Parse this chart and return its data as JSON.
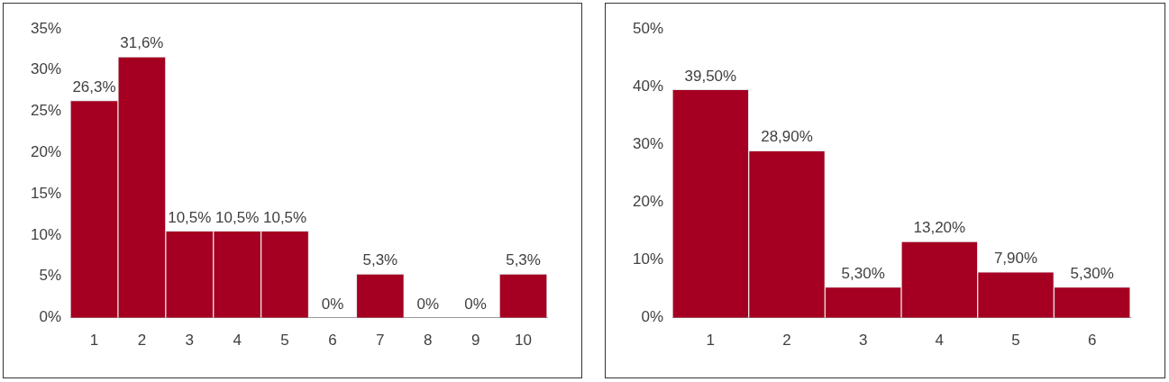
{
  "chart_data": [
    {
      "type": "bar",
      "categories": [
        "1",
        "2",
        "3",
        "4",
        "5",
        "6",
        "7",
        "8",
        "9",
        "10"
      ],
      "values": [
        26.3,
        31.6,
        10.5,
        10.5,
        10.5,
        0,
        5.3,
        0,
        0,
        5.3
      ],
      "color": "#a50021",
      "value_labels": [
        "26,3%",
        "31,6%",
        "10,5%",
        "10,5%",
        "10,5%",
        "0%",
        "5,3%",
        "0%",
        "0%",
        "5,3%"
      ],
      "ylim": [
        0,
        35
      ],
      "yticks": [
        {
          "value": 0,
          "label": "0%"
        },
        {
          "value": 5,
          "label": "5%"
        },
        {
          "value": 10,
          "label": "10%"
        },
        {
          "value": 15,
          "label": "15%"
        },
        {
          "value": 20,
          "label": "20%"
        },
        {
          "value": 25,
          "label": "25%"
        },
        {
          "value": 30,
          "label": "30%"
        },
        {
          "value": 35,
          "label": "35%"
        }
      ]
    },
    {
      "type": "bar",
      "categories": [
        "1",
        "2",
        "3",
        "4",
        "5",
        "6"
      ],
      "values": [
        39.5,
        28.9,
        5.3,
        13.2,
        7.9,
        5.3
      ],
      "color": "#a50021",
      "value_labels": [
        "39,50%",
        "28,90%",
        "5,30%",
        "13,20%",
        "7,90%",
        "5,30%"
      ],
      "ylim": [
        0,
        50
      ],
      "yticks": [
        {
          "value": 0,
          "label": "0%"
        },
        {
          "value": 10,
          "label": "10%"
        },
        {
          "value": 20,
          "label": "20%"
        },
        {
          "value": 30,
          "label": "30%"
        },
        {
          "value": 40,
          "label": "40%"
        },
        {
          "value": 50,
          "label": "50%"
        }
      ]
    }
  ]
}
